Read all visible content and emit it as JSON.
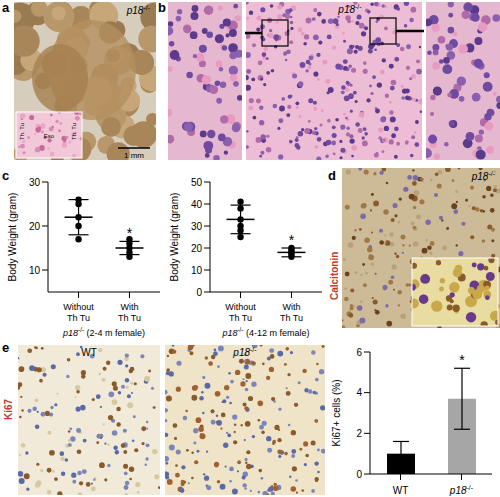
{
  "panels": {
    "a": {
      "label": "a",
      "genotype": "p18-/-",
      "inset_labels": [
        "Th. Tu",
        "Eso",
        "Th. Tu"
      ],
      "scale_bar": "1 mm"
    },
    "b": {
      "label": "b",
      "genotype": "p18-/-"
    },
    "c": {
      "label": "c"
    },
    "d": {
      "label": "d",
      "genotype": "p18-/-",
      "stain": "Calcitonin"
    },
    "e": {
      "label": "e",
      "stain": "Ki67",
      "images": [
        "WT",
        "p18-/-"
      ]
    }
  },
  "chart_data": [
    {
      "type": "scatter",
      "y_label": "Body Weight (gram)",
      "subtitle": "p18-/- (2-4 m female)",
      "categories": [
        "Without Th Tu",
        "With Th Tu"
      ],
      "points": [
        [
          17,
          20,
          22,
          25,
          26
        ],
        [
          13,
          14,
          15,
          16,
          17
        ]
      ],
      "mean": [
        22,
        15
      ],
      "sd": [
        4,
        1.5
      ],
      "color": "#000000",
      "ylim": [
        5,
        30
      ],
      "yticks": [
        10,
        20,
        30
      ],
      "annotations": [
        {
          "category": "With Th Tu",
          "text": "*"
        }
      ]
    },
    {
      "type": "scatter",
      "y_label": "Body Weight (gram)",
      "subtitle": "p18-/- (4-12 m female)",
      "categories": [
        "Without Th Tu",
        "With Th Tu"
      ],
      "points": [
        [
          25,
          28,
          30,
          33,
          38,
          41
        ],
        [
          16,
          17,
          18,
          19,
          20
        ]
      ],
      "mean": [
        33,
        18
      ],
      "sd": [
        6.5,
        2
      ],
      "color": "#000000",
      "ylim": [
        0,
        50
      ],
      "yticks": [
        0,
        10,
        20,
        30,
        40,
        50
      ],
      "annotations": [
        {
          "category": "With Th Tu",
          "text": "*"
        }
      ]
    },
    {
      "type": "bar",
      "y_label": "Ki67+ cells (%)",
      "categories": [
        "WT",
        "p18-/-"
      ],
      "values": [
        1,
        3.7
      ],
      "errors": [
        0.6,
        1.5
      ],
      "colors": [
        "#000000",
        "#a6a6a6"
      ],
      "ylim": [
        0,
        6
      ],
      "yticks": [
        0,
        2,
        4,
        6
      ],
      "annotations": [
        {
          "category": "p18-/-",
          "text": "*"
        }
      ]
    }
  ]
}
